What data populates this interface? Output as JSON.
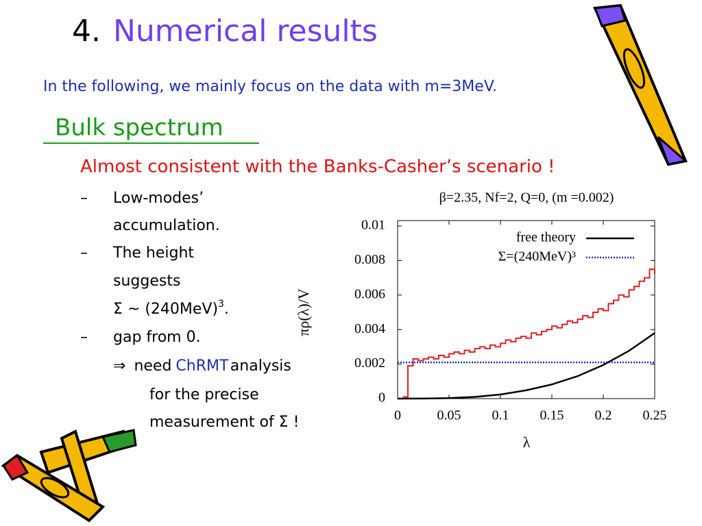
{
  "slide": {
    "number": "4.",
    "title": "Numerical results",
    "intro": "In the following,  we mainly focus on the data with m=3MeV.",
    "section": "Bulk spectrum",
    "claim": "Almost consistent with the Banks-Casher’s scenario !",
    "bullet_dash": "–",
    "bullet1": [
      "Low-modes’",
      "accumulation."
    ],
    "bullet2": [
      "The height",
      "suggests"
    ],
    "sigma_text": "Σ ~ (240MeV)",
    "sigma_sup": "3",
    "sigma_end": ".",
    "bullet3": "gap from 0.",
    "arrow": "⇒",
    "need": "need",
    "chrmt": "ChRMT",
    "analysis": "analysis",
    "tail": [
      "for the precise",
      "measurement of Σ !"
    ]
  },
  "chart_data": {
    "type": "line",
    "title": "β=2.35, Nf=2, Q=0, (m =0.002)",
    "xlabel": "λ",
    "ylabel": "πρ(λ)/V",
    "xlim": [
      0,
      0.25
    ],
    "ylim": [
      0,
      0.01
    ],
    "xticks": [
      0,
      0.05,
      0.1,
      0.15,
      0.2,
      0.25
    ],
    "yticks": [
      0,
      0.002,
      0.004,
      0.006,
      0.008,
      0.01
    ],
    "series": [
      {
        "color": "#e02020",
        "step": true,
        "x": [
          0.005,
          0.01,
          0.015,
          0.02,
          0.025,
          0.03,
          0.035,
          0.04,
          0.045,
          0.05,
          0.055,
          0.06,
          0.065,
          0.07,
          0.075,
          0.08,
          0.085,
          0.09,
          0.095,
          0.1,
          0.105,
          0.11,
          0.115,
          0.12,
          0.125,
          0.13,
          0.135,
          0.14,
          0.145,
          0.15,
          0.155,
          0.16,
          0.165,
          0.17,
          0.175,
          0.18,
          0.185,
          0.19,
          0.195,
          0.2,
          0.205,
          0.21,
          0.215,
          0.22,
          0.225,
          0.23,
          0.235,
          0.24,
          0.245,
          0.25
        ],
        "values": [
          0.0001,
          0.0019,
          0.0023,
          0.0022,
          0.0023,
          0.0024,
          0.0023,
          0.0025,
          0.0024,
          0.0026,
          0.0027,
          0.0026,
          0.0028,
          0.0027,
          0.0029,
          0.003,
          0.0029,
          0.0031,
          0.003,
          0.0032,
          0.0034,
          0.0033,
          0.0035,
          0.0036,
          0.0035,
          0.0038,
          0.0037,
          0.0039,
          0.004,
          0.0042,
          0.0041,
          0.0043,
          0.0045,
          0.0044,
          0.0046,
          0.0048,
          0.0047,
          0.005,
          0.0052,
          0.0051,
          0.0055,
          0.0057,
          0.006,
          0.0059,
          0.0063,
          0.0065,
          0.0068,
          0.007,
          0.0075,
          0.0072
        ]
      },
      {
        "name": "free theory",
        "color": "#000000",
        "x": [
          0,
          0.025,
          0.05,
          0.075,
          0.1,
          0.125,
          0.15,
          0.175,
          0.2,
          0.225,
          0.25
        ],
        "values": [
          0,
          4e-06,
          3e-05,
          0.0001,
          0.00024,
          0.00048,
          0.00082,
          0.0013,
          0.00195,
          0.00277,
          0.0038
        ]
      },
      {
        "name": "Σ=(240MeV)³",
        "color": "#1a2eb8",
        "dotted": true,
        "x": [
          0,
          0.25
        ],
        "values": [
          0.0021,
          0.0021
        ]
      }
    ]
  }
}
